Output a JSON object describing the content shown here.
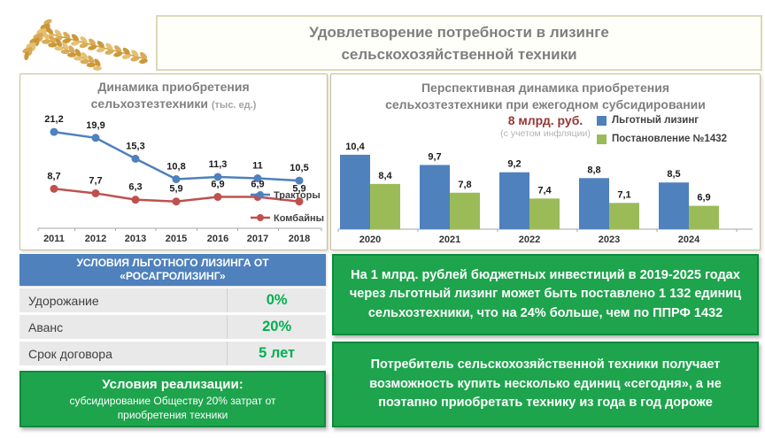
{
  "slide_title": {
    "line1": "Удовлетворение потребности в лизинге",
    "line2": "сельскохозяйственной техники"
  },
  "chart_data": [
    {
      "type": "line",
      "title": "Динамика приобретения сельхозтезтехники",
      "title_unit": "(тыс. ед.)",
      "categories": [
        "2011",
        "2012",
        "2013",
        "2015",
        "2016",
        "2017",
        "2018"
      ],
      "series": [
        {
          "name": "Тракторы",
          "color": "#4F81BD",
          "values": [
            21.2,
            19.9,
            15.3,
            10.8,
            11.3,
            11,
            10.5
          ]
        },
        {
          "name": "Комбайны",
          "color": "#C0504D",
          "values": [
            8.7,
            7.7,
            6.3,
            5.9,
            6.9,
            6.9,
            5.9
          ]
        }
      ],
      "ylim": [
        0,
        22
      ],
      "grid": false,
      "legend_position": "top-right"
    },
    {
      "type": "bar",
      "title_line1": "Перспективная динамика приобретения",
      "title_line2": "сельхозтезтехники при ежегодном субсидировании",
      "title_line3": "8 млрд. руб.",
      "subtitle": "(с учетом инфляции)",
      "categories": [
        "2020",
        "2021",
        "2022",
        "2023",
        "2024"
      ],
      "series": [
        {
          "name": "Льготный лизинг",
          "color": "#4F81BD",
          "values": [
            10.4,
            9.7,
            9.2,
            8.8,
            8.5
          ]
        },
        {
          "name": "Постановление №1432",
          "color": "#9BBB59",
          "values": [
            8.4,
            7.8,
            7.4,
            7.1,
            6.9
          ]
        }
      ],
      "ylim": [
        5.3,
        11
      ],
      "grid": false,
      "legend_position": "right"
    }
  ],
  "leasing_table": {
    "header": "УСЛОВИЯ ЛЬГОТНОГО ЛИЗИНГА ОТ «РОСАГРОЛИЗИНГ»",
    "rows": [
      {
        "label": "Удорожание",
        "value": "0%"
      },
      {
        "label": "Аванс",
        "value": "20%"
      },
      {
        "label": "Срок договора",
        "value": "5 лет"
      }
    ]
  },
  "realization_box": {
    "title": "Условия реализации:",
    "body": "субсидирование Обществу 20% затрат от приобретения техники"
  },
  "info_boxes": [
    "На 1 млрд. рублей бюджетных инвестиций в 2019-2025 годах через льготный лизинг может быть поставлено 1 132 единиц сельхозтехники, что на 24% больше, чем по ППРФ 1432",
    "Потребитель сельскохозяйственной техники получает возможность купить несколько единиц «сегодня», а не поэтапно приобретать технику из года в год дороже"
  ],
  "colors": {
    "series_blue": "#4F81BD",
    "series_red": "#C0504D",
    "series_green": "#9BBB59",
    "accent_green_text": "#00B050",
    "info_box_green": "#1EA44D",
    "table_header_blue": "#4F81BD",
    "title_gray": "#7F7F7F",
    "emphasis_red": "#953735"
  }
}
